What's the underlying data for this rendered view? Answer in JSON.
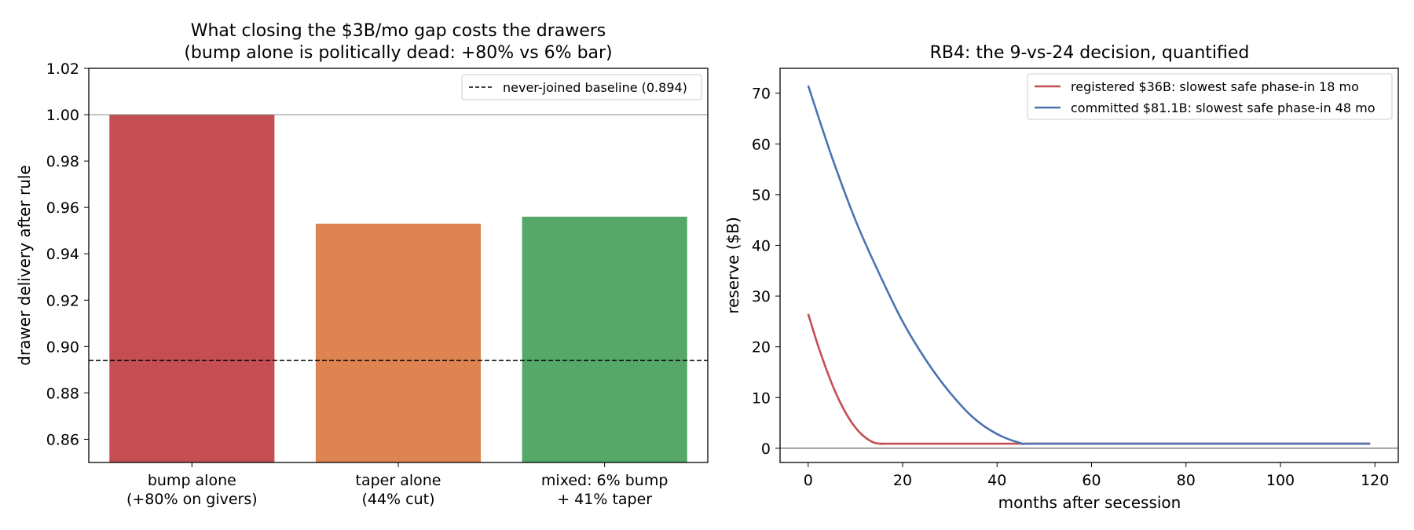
{
  "chart_data": [
    {
      "type": "bar",
      "title_lines": [
        "What closing the $3B/mo gap costs the drawers",
        "(bump alone is politically dead: +80% vs 6% bar)"
      ],
      "ylabel": "drawer delivery after rule",
      "xlabel": "",
      "ylim": [
        0.85,
        1.02
      ],
      "yticks": [
        "0.86",
        "0.88",
        "0.90",
        "0.92",
        "0.94",
        "0.96",
        "0.98",
        "1.00",
        "1.02"
      ],
      "categories": [
        [
          "bump alone",
          "(+80% on givers)"
        ],
        [
          "taper alone",
          "(44% cut)"
        ],
        [
          "mixed: 6% bump",
          "+ 41% taper"
        ]
      ],
      "values": [
        1.0,
        0.953,
        0.956
      ],
      "colors": [
        "#c44e52",
        "#dd8452",
        "#55a868"
      ],
      "reference_lines": [
        {
          "value": 1.0,
          "style": "solid",
          "color": "#888888"
        },
        {
          "value": 0.894,
          "style": "dashed",
          "color": "#000000",
          "label": "never-joined baseline (0.894)"
        }
      ],
      "legend": {
        "placement": "top-right",
        "entries": [
          "never-joined baseline (0.894)"
        ]
      },
      "grid": false
    },
    {
      "type": "line",
      "title": "RB4: the 9-vs-24 decision, quantified",
      "xlabel": "months after secession",
      "ylabel": "reserve ($B)",
      "xlim": [
        -5.95,
        124.95
      ],
      "ylim": [
        -2.8,
        74.9
      ],
      "xticks": [
        "0",
        "20",
        "40",
        "60",
        "80",
        "100",
        "120"
      ],
      "yticks": [
        "0",
        "10",
        "20",
        "30",
        "40",
        "50",
        "60",
        "70"
      ],
      "series": [
        {
          "name": "registered $36B: slowest safe phase-in 18 mo",
          "color": "#c44e52",
          "x": [
            0,
            2,
            4,
            6,
            8,
            10,
            12,
            14,
            16,
            17,
            40,
            80,
            119
          ],
          "y": [
            26.5,
            20.5,
            15.2,
            10.6,
            6.9,
            4.1,
            2.2,
            1.1,
            0.9,
            0.9,
            0.9,
            0.9,
            0.9
          ]
        },
        {
          "name": "committed $81.1B: slowest safe phase-in 48 mo",
          "color": "#4c72b0",
          "x": [
            0,
            5,
            10,
            15,
            20,
            25,
            30,
            35,
            40,
            45,
            47,
            60,
            80,
            100,
            119
          ],
          "y": [
            71.5,
            57.5,
            45.0,
            34.5,
            25.0,
            17.3,
            11.0,
            6.0,
            2.8,
            1.0,
            0.9,
            0.9,
            0.9,
            0.9,
            0.9
          ]
        }
      ],
      "reference_lines": [
        {
          "value": 0,
          "style": "solid",
          "color": "#444444"
        }
      ],
      "legend": {
        "placement": "top-right"
      },
      "grid": false
    }
  ]
}
